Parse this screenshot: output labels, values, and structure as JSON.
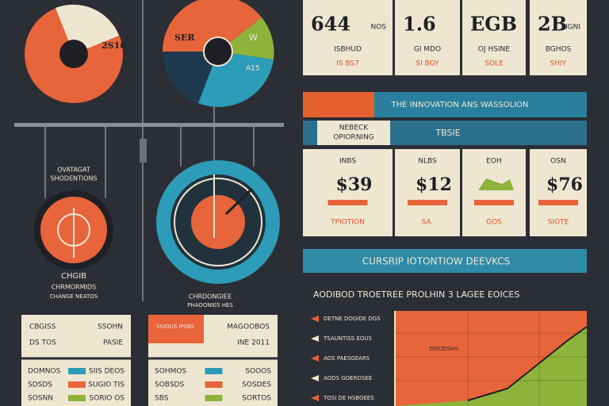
{
  "pies": {
    "left_label": "2S16",
    "right_labels": [
      "SER",
      "W",
      "A15"
    ]
  },
  "circles": {
    "left_top": [
      "OVATAGAT",
      "SHODENTIONS"
    ],
    "left_bottom": [
      "CHGIB",
      "CHRMORMIDS",
      "CHANGE NEATOS"
    ],
    "center_bottom": [
      "CHRDONGIEE",
      "PHAOONIES HES"
    ]
  },
  "top_cards": [
    {
      "big": "644",
      "small": "NOS",
      "lines": [
        "ISBHUD",
        "IS BS7"
      ]
    },
    {
      "big": "1.6",
      "small": "",
      "lines": [
        "GI MDO",
        "SI BGY"
      ]
    },
    {
      "big": "EGB",
      "small": "",
      "lines": [
        "OJ HSINE",
        "SOLE"
      ]
    },
    {
      "big": "2B",
      "small": "IGNI",
      "lines": [
        "BGHOS",
        "SHIY"
      ]
    }
  ],
  "banner_1": "THE INNOVATION ANS WASSOLION",
  "subheader": {
    "left": [
      "NEBECK",
      "OPIORNING"
    ],
    "right": "TBSIE"
  },
  "mid_cards": [
    {
      "head": "INBS",
      "big": "$39",
      "sub": "TPIOTION"
    },
    {
      "head": "NLBS",
      "big": "$12",
      "sub": "SA."
    },
    {
      "head": "EOH",
      "big": "",
      "sub": "GOS"
    },
    {
      "head": "OSN",
      "big": "$76",
      "sub": "SIOTE"
    }
  ],
  "banner_2": "CURSRIP IOTONTIOW DEEVKCS",
  "section_title": "AODIBOD TROETREE PROLHIN 3 LAGEE EOICES",
  "chart_labels": [
    "DETNE DOGIDE DGS",
    "TSAUNTISS EOUS",
    "AOS PAESGEARS",
    "AODS GOEROSEE",
    "TOSI DE HSBGEES"
  ],
  "chart_inner": "DOCEISHS",
  "bottom_cards": [
    {
      "header": [
        "CBGISS",
        "SSOHN"
      ],
      "sub": [
        "DS TOS",
        "PASIE"
      ],
      "rows": [
        [
          "DOMNOS",
          "SIIS DEOS"
        ],
        [
          "SDSDS",
          "SUGIO TIS"
        ],
        [
          "SOSNN",
          "SORIO OS"
        ]
      ]
    },
    {
      "header": [
        "SIVOUS IPIIBS",
        "MAGOOBOS"
      ],
      "sub": [
        "",
        "INE 2011"
      ],
      "rows": [
        [
          "SOHMOS",
          "SOOOS"
        ],
        [
          "SOBSDS",
          "SOSDES"
        ],
        [
          "SBS",
          "SORTOS"
        ]
      ]
    }
  ]
}
